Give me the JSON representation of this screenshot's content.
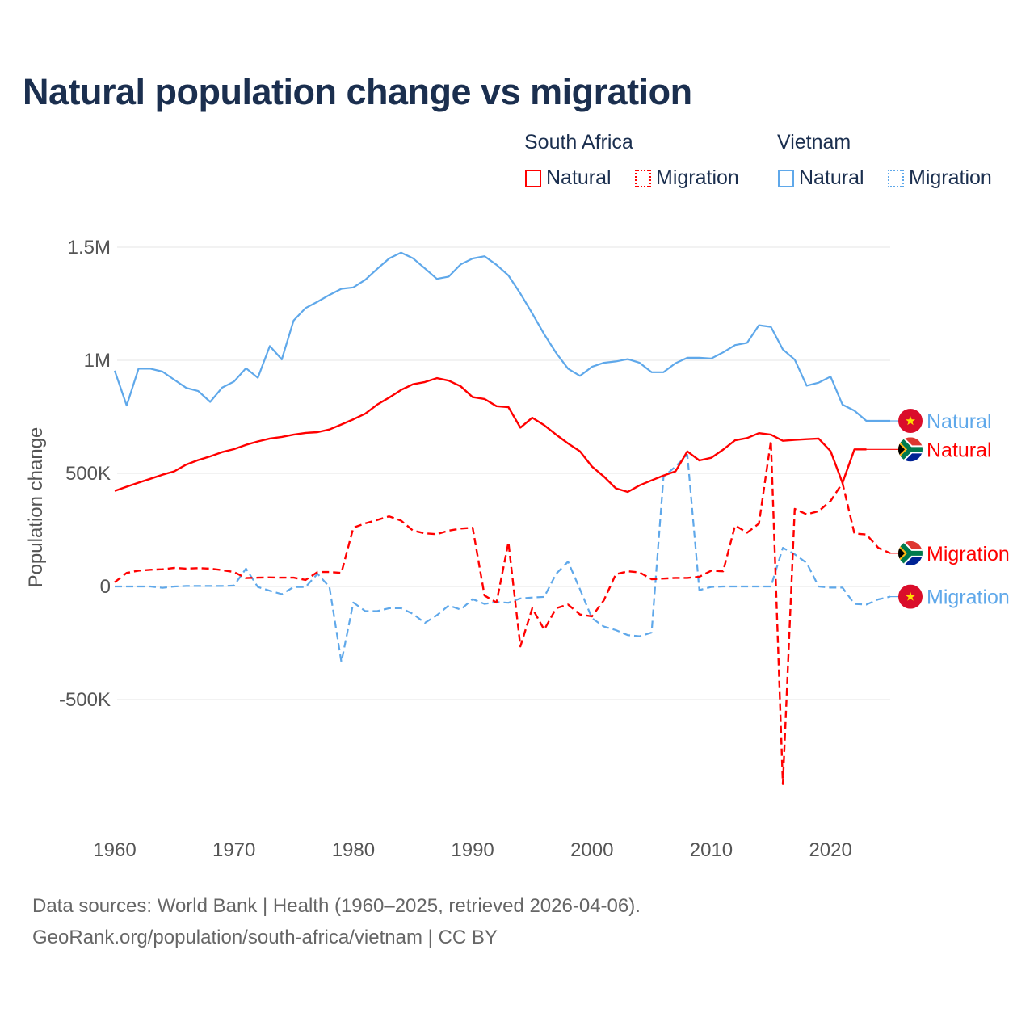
{
  "title": "Natural population change vs migration",
  "legend": {
    "groups": [
      {
        "label": "South Africa",
        "items": [
          {
            "label": "Natural",
            "style": "solid"
          },
          {
            "label": "Migration",
            "style": "dotted"
          }
        ],
        "color": "#ff0000"
      },
      {
        "label": "Vietnam",
        "items": [
          {
            "label": "Natural",
            "style": "solid"
          },
          {
            "label": "Migration",
            "style": "dotted"
          }
        ],
        "color": "#5fa8ea"
      }
    ]
  },
  "footer": {
    "line1": "Data sources: World Bank | Health (1960–2025, retrieved 2026-04-06).",
    "line2": "GeoRank.org/population/south-africa/vietnam | CC BY"
  },
  "chart_data": {
    "type": "line",
    "title": "Natural population change vs migration",
    "xlabel": "",
    "ylabel": "Population change",
    "x_ticks": [
      1960,
      1970,
      1980,
      1990,
      2000,
      2010,
      2020
    ],
    "x_tick_labels": [
      "1960",
      "1970",
      "1980",
      "1990",
      "2000",
      "2010",
      "2020"
    ],
    "y_ticks": [
      1500000,
      1000000,
      500000,
      0,
      -500000
    ],
    "y_tick_labels": [
      "1.5M",
      "1M",
      "500K",
      "0",
      "-500K"
    ],
    "xlim": [
      1960,
      2025
    ],
    "grid": true,
    "x": [
      1960,
      1961,
      1962,
      1963,
      1964,
      1965,
      1966,
      1967,
      1968,
      1969,
      1970,
      1971,
      1972,
      1973,
      1974,
      1975,
      1976,
      1977,
      1978,
      1979,
      1980,
      1981,
      1982,
      1983,
      1984,
      1985,
      1986,
      1987,
      1988,
      1989,
      1990,
      1991,
      1992,
      1993,
      1994,
      1995,
      1996,
      1997,
      1998,
      1999,
      2000,
      2001,
      2002,
      2003,
      2004,
      2005,
      2006,
      2007,
      2008,
      2009,
      2010,
      2011,
      2012,
      2013,
      2014,
      2015,
      2016,
      2017,
      2018,
      2019,
      2020,
      2021,
      2022,
      2023,
      2024,
      2025
    ],
    "series": [
      {
        "name": "Vietnam Natural",
        "end_label": "Natural",
        "country": "Vietnam",
        "color": "#5fa8ea",
        "dash": false,
        "values": [
          954000,
          800000,
          963000,
          963000,
          950000,
          914000,
          878000,
          864000,
          816000,
          879000,
          906000,
          965000,
          923000,
          1063000,
          1004000,
          1176000,
          1231000,
          1259000,
          1289000,
          1316000,
          1322000,
          1356000,
          1404000,
          1450000,
          1476000,
          1451000,
          1406000,
          1360000,
          1370000,
          1424000,
          1450000,
          1460000,
          1422000,
          1375000,
          1295000,
          1207000,
          1115000,
          1032000,
          963000,
          931000,
          971000,
          989000,
          995000,
          1005000,
          989000,
          947000,
          947000,
          987000,
          1011000,
          1011000,
          1008000,
          1035000,
          1067000,
          1077000,
          1155000,
          1148000,
          1048000,
          1003000,
          888000,
          901000,
          928000,
          804000,
          777000,
          732000,
          732000,
          732000
        ]
      },
      {
        "name": "South Africa Natural",
        "end_label": "Natural",
        "country": "South Africa",
        "color": "#ff0000",
        "dash": false,
        "values": [
          422000,
          441000,
          459000,
          476000,
          494000,
          509000,
          539000,
          559000,
          575000,
          594000,
          607000,
          626000,
          641000,
          654000,
          661000,
          671000,
          679000,
          682000,
          694000,
          716000,
          739000,
          764000,
          804000,
          835000,
          869000,
          894000,
          904000,
          921000,
          910000,
          885000,
          837000,
          829000,
          797000,
          793000,
          702000,
          746000,
          713000,
          671000,
          632000,
          597000,
          530000,
          486000,
          434000,
          418000,
          447000,
          469000,
          490000,
          509000,
          597000,
          557000,
          569000,
          605000,
          646000,
          656000,
          678000,
          671000,
          644000,
          648000,
          651000,
          654000,
          598000,
          458000,
          606000,
          606000,
          null,
          null
        ]
      },
      {
        "name": "South Africa Migration",
        "end_label": "Migration",
        "country": "South Africa",
        "color": "#ff0000",
        "dash": true,
        "values": [
          19000,
          60000,
          70000,
          74000,
          76000,
          82000,
          79000,
          81000,
          79000,
          72000,
          64000,
          37000,
          39000,
          40000,
          39000,
          39000,
          29000,
          64000,
          64000,
          60000,
          260000,
          279000,
          294000,
          310000,
          291000,
          247000,
          235000,
          231000,
          247000,
          256000,
          260000,
          -40000,
          -71000,
          195000,
          -265000,
          -96000,
          -191000,
          -96000,
          -80000,
          -124000,
          -132000,
          -61000,
          54000,
          67000,
          62000,
          32000,
          35000,
          38000,
          38000,
          43000,
          70000,
          67000,
          270000,
          238000,
          278000,
          644000,
          -874000,
          343000,
          319000,
          333000,
          378000,
          458000,
          234000,
          230000,
          171000,
          147000
        ]
      },
      {
        "name": "Vietnam Migration",
        "end_label": "Migration",
        "country": "Vietnam",
        "color": "#5fa8ea",
        "dash": true,
        "values": [
          0,
          0,
          0,
          0,
          -6000,
          0,
          2000,
          2000,
          2000,
          2000,
          4000,
          79000,
          -2000,
          -19000,
          -34000,
          -2000,
          -2000,
          56000,
          -2000,
          -334000,
          -71000,
          -109000,
          -109000,
          -96000,
          -96000,
          -121000,
          -161000,
          -127000,
          -84000,
          -102000,
          -56000,
          -77000,
          -69000,
          -72000,
          -53000,
          -49000,
          -46000,
          56000,
          110000,
          -13000,
          -140000,
          -177000,
          -193000,
          -215000,
          -220000,
          -204000,
          485000,
          530000,
          582000,
          -16000,
          -2000,
          0,
          0,
          0,
          0,
          0,
          171000,
          142000,
          104000,
          0,
          -5000,
          -5000,
          -77000,
          -80000,
          -57000,
          -45000
        ]
      }
    ]
  }
}
